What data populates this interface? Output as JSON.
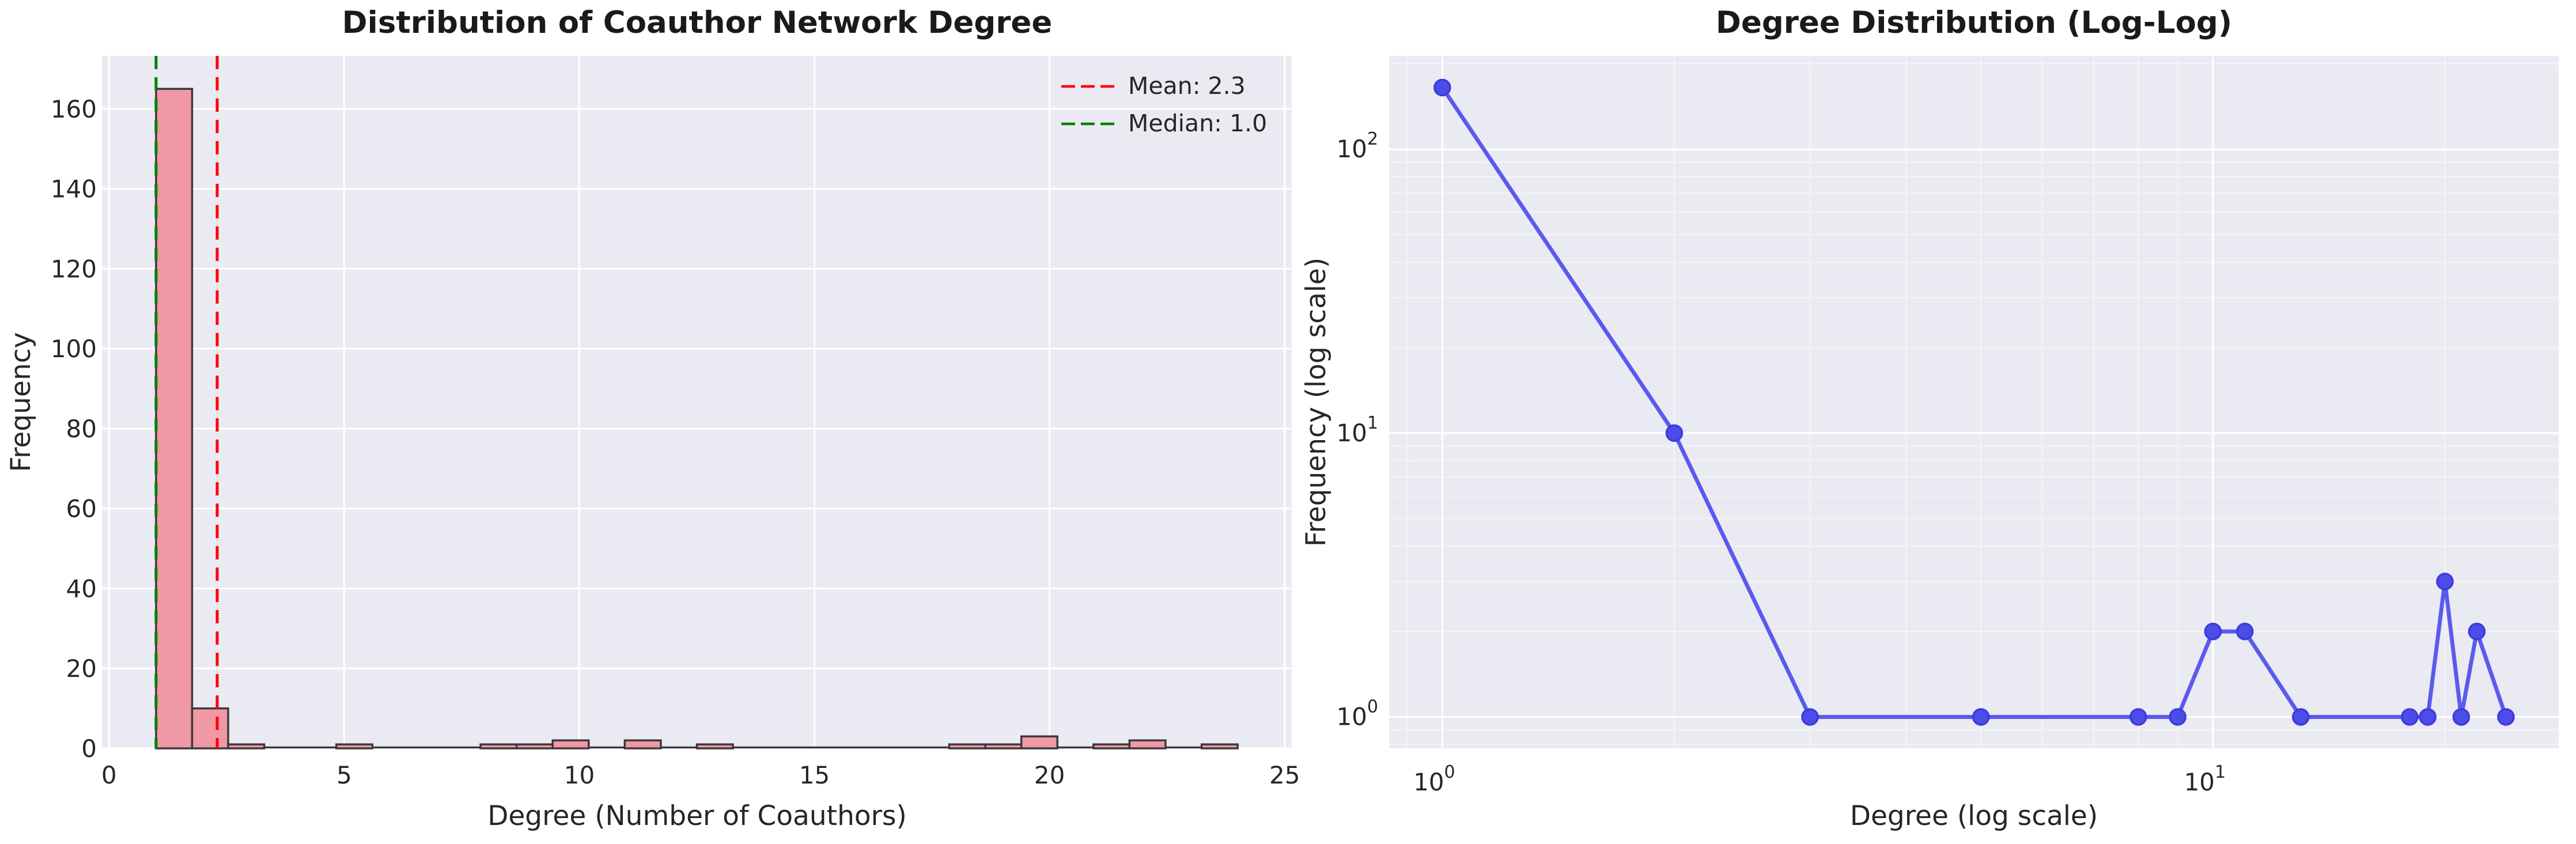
{
  "figure": {
    "background": "#ffffff",
    "axes_background": "#eaeaf2",
    "grid_color": "#ffffff"
  },
  "chart_data": [
    {
      "type": "bar",
      "subtype": "histogram",
      "title": "Distribution of Coauthor Network Degree",
      "xlabel": "Degree (Number of Coauthors)",
      "ylabel": "Frequency",
      "degrees": [
        1,
        2,
        3,
        5,
        8,
        9,
        10,
        11,
        13,
        18,
        19,
        20,
        21,
        22,
        24
      ],
      "counts": [
        165,
        10,
        1,
        1,
        1,
        1,
        2,
        2,
        1,
        1,
        1,
        3,
        1,
        2,
        1
      ],
      "bins": {
        "start": 1,
        "end": 24,
        "count": 30
      },
      "xticks": [
        0,
        5,
        10,
        15,
        20,
        25
      ],
      "yticks": [
        0,
        20,
        40,
        60,
        80,
        100,
        120,
        140,
        160
      ],
      "xlim": [
        -0.15,
        25.15
      ],
      "ylim": [
        0,
        173.25
      ],
      "bar_color": "#f098a4",
      "bar_edge_color": "#3a363c",
      "mean_line": {
        "value": 2.3,
        "label": "Mean: 2.3",
        "color": "#ff0000",
        "style": "dashed"
      },
      "median_line": {
        "value": 1.0,
        "label": "Median: 1.0",
        "color": "#008000",
        "style": "dashed"
      },
      "legend_position": "upper right",
      "grid": true
    },
    {
      "type": "line",
      "title": "Degree Distribution (Log-Log)",
      "xlabel": "Degree (log scale)",
      "ylabel": "Frequency (log scale)",
      "x": [
        1,
        2,
        3,
        5,
        8,
        9,
        10,
        11,
        13,
        18,
        19,
        20,
        21,
        22,
        24
      ],
      "y": [
        165,
        10,
        1,
        1,
        1,
        1,
        2,
        2,
        1,
        1,
        1,
        3,
        1,
        2,
        1
      ],
      "xscale": "log",
      "yscale": "log",
      "xticks": [
        {
          "mantissa": 10,
          "exp": 0
        },
        {
          "mantissa": 10,
          "exp": 1
        }
      ],
      "yticks": [
        {
          "mantissa": 10,
          "exp": 0
        },
        {
          "mantissa": 10,
          "exp": 1
        },
        {
          "mantissa": 10,
          "exp": 2
        }
      ],
      "x_minor_ticks": [
        0.9,
        2,
        3,
        4,
        5,
        6,
        7,
        8,
        9,
        20
      ],
      "y_minor_ticks": [
        0.8,
        0.9,
        2,
        3,
        4,
        5,
        6,
        7,
        8,
        9,
        20,
        30,
        40,
        50,
        60,
        70,
        80,
        90,
        200
      ],
      "xlim": [
        0.853,
        28.1
      ],
      "ylim": [
        0.775,
        213.3
      ],
      "line_color": "#5a5aee",
      "marker_color": "#4c4ce8",
      "marker_edge_color": "#3c3cdc",
      "grid": true
    }
  ]
}
